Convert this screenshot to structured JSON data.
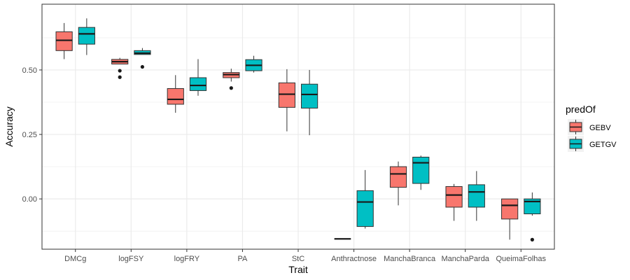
{
  "chart_data": {
    "type": "boxplot",
    "xlabel": "Trait",
    "ylabel": "Accuracy",
    "ylim": [
      -0.195,
      0.755
    ],
    "y_ticks": [
      0.0,
      0.25,
      0.5
    ],
    "y_tick_labels": [
      "0.00",
      "0.25",
      "0.50"
    ],
    "grid": true,
    "legend": {
      "title": "predOf",
      "position": "right",
      "entries": [
        {
          "name": "GEBV",
          "color": "#F8766D"
        },
        {
          "name": "GETGV",
          "color": "#00BFC4"
        }
      ]
    },
    "categories": [
      "DMCg",
      "logFSY",
      "logFRY",
      "PA",
      "StC",
      "Anthractnose",
      "ManchaBranca",
      "ManchaParda",
      "QueimaFolhas"
    ],
    "series": [
      {
        "name": "GEBV",
        "color": "#F8766D",
        "boxes": [
          {
            "min": 0.542,
            "q1": 0.575,
            "median": 0.615,
            "q3": 0.648,
            "max": 0.682,
            "outliers": []
          },
          {
            "min": 0.522,
            "q1": 0.523,
            "median": 0.532,
            "q3": 0.541,
            "max": 0.547,
            "outliers": [
              0.497,
              0.472
            ]
          },
          {
            "min": 0.334,
            "q1": 0.367,
            "median": 0.386,
            "q3": 0.428,
            "max": 0.48,
            "outliers": []
          },
          {
            "min": 0.455,
            "q1": 0.47,
            "median": 0.482,
            "q3": 0.49,
            "max": 0.505,
            "outliers": [
              0.43
            ]
          },
          {
            "min": 0.262,
            "q1": 0.355,
            "median": 0.406,
            "q3": 0.45,
            "max": 0.503,
            "outliers": []
          },
          {
            "min": -0.155,
            "q1": -0.155,
            "median": -0.155,
            "q3": -0.155,
            "max": -0.155,
            "outliers": []
          },
          {
            "min": -0.025,
            "q1": 0.045,
            "median": 0.097,
            "q3": 0.125,
            "max": 0.145,
            "outliers": []
          },
          {
            "min": -0.085,
            "q1": -0.032,
            "median": 0.015,
            "q3": 0.048,
            "max": 0.058,
            "outliers": []
          },
          {
            "min": -0.158,
            "q1": -0.078,
            "median": -0.025,
            "q3": 0.0,
            "max": 0.0,
            "outliers": []
          }
        ]
      },
      {
        "name": "GETGV",
        "color": "#00BFC4",
        "boxes": [
          {
            "min": 0.558,
            "q1": 0.6,
            "median": 0.64,
            "q3": 0.665,
            "max": 0.7,
            "outliers": []
          },
          {
            "min": 0.56,
            "q1": 0.56,
            "median": 0.565,
            "q3": 0.575,
            "max": 0.585,
            "outliers": [
              0.512
            ]
          },
          {
            "min": 0.4,
            "q1": 0.42,
            "median": 0.44,
            "q3": 0.47,
            "max": 0.542,
            "outliers": []
          },
          {
            "min": 0.49,
            "q1": 0.497,
            "median": 0.518,
            "q3": 0.54,
            "max": 0.555,
            "outliers": []
          },
          {
            "min": 0.247,
            "q1": 0.352,
            "median": 0.405,
            "q3": 0.445,
            "max": 0.5,
            "outliers": []
          },
          {
            "min": -0.115,
            "q1": -0.107,
            "median": -0.012,
            "q3": 0.032,
            "max": 0.112,
            "outliers": []
          },
          {
            "min": 0.035,
            "q1": 0.06,
            "median": 0.14,
            "q3": 0.162,
            "max": 0.168,
            "outliers": []
          },
          {
            "min": -0.085,
            "q1": -0.032,
            "median": 0.027,
            "q3": 0.055,
            "max": 0.108,
            "outliers": []
          },
          {
            "min": -0.065,
            "q1": -0.058,
            "median": -0.01,
            "q3": 0.0,
            "max": 0.025,
            "outliers": [
              -0.158
            ]
          }
        ]
      }
    ]
  }
}
